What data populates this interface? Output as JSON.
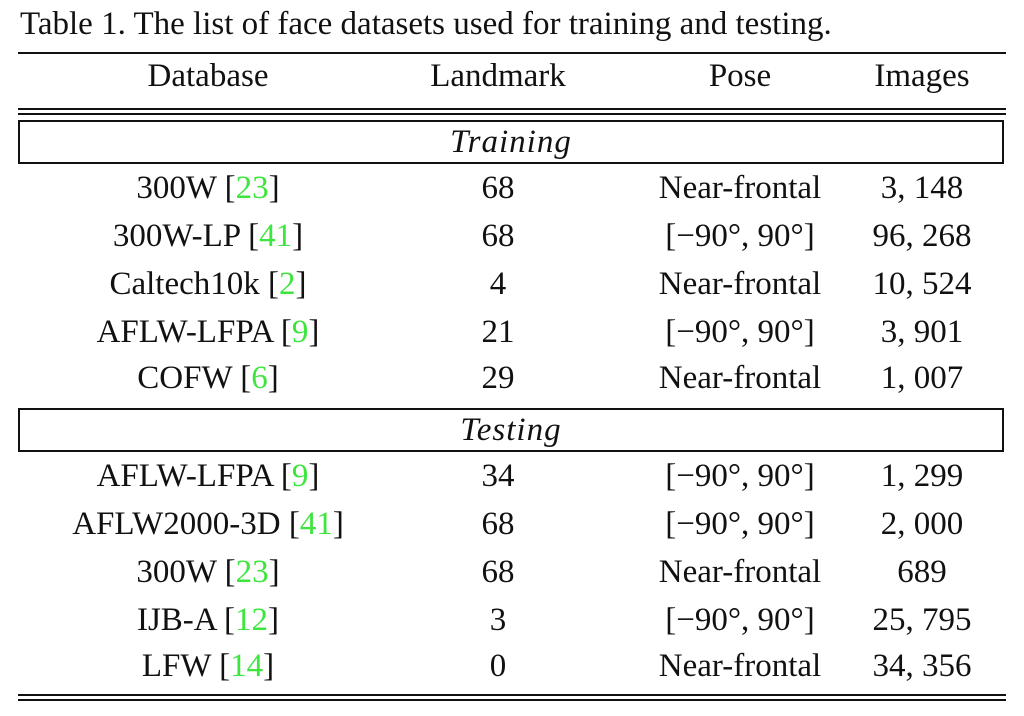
{
  "caption": "Table 1. The list of face datasets used for training and testing.",
  "columns": [
    "Database",
    "Landmark",
    "Pose",
    "Images"
  ],
  "sections": [
    {
      "title": "Training",
      "rows": [
        {
          "name": "300W",
          "cite": "23",
          "landmark": "68",
          "pose": "Near-frontal",
          "images": "3, 148"
        },
        {
          "name": "300W-LP",
          "cite": "41",
          "landmark": "68",
          "pose": "[−90°, 90°]",
          "images": "96, 268"
        },
        {
          "name": "Caltech10k",
          "cite": "2",
          "landmark": "4",
          "pose": "Near-frontal",
          "images": "10, 524"
        },
        {
          "name": "AFLW-LFPA",
          "cite": "9",
          "landmark": "21",
          "pose": "[−90°, 90°]",
          "images": "3, 901"
        },
        {
          "name": "COFW",
          "cite": "6",
          "landmark": "29",
          "pose": "Near-frontal",
          "images": "1, 007"
        }
      ]
    },
    {
      "title": "Testing",
      "rows": [
        {
          "name": "AFLW-LFPA",
          "cite": "9",
          "landmark": "34",
          "pose": "[−90°, 90°]",
          "images": "1, 299"
        },
        {
          "name": "AFLW2000-3D",
          "cite": "41",
          "landmark": "68",
          "pose": "[−90°, 90°]",
          "images": "2, 000"
        },
        {
          "name": "300W",
          "cite": "23",
          "landmark": "68",
          "pose": "Near-frontal",
          "images": "689"
        },
        {
          "name": "IJB-A",
          "cite": "12",
          "landmark": "3",
          "pose": "[−90°, 90°]",
          "images": "25, 795"
        },
        {
          "name": "LFW",
          "cite": "14",
          "landmark": "0",
          "pose": "Near-frontal",
          "images": "34, 356"
        }
      ]
    }
  ]
}
